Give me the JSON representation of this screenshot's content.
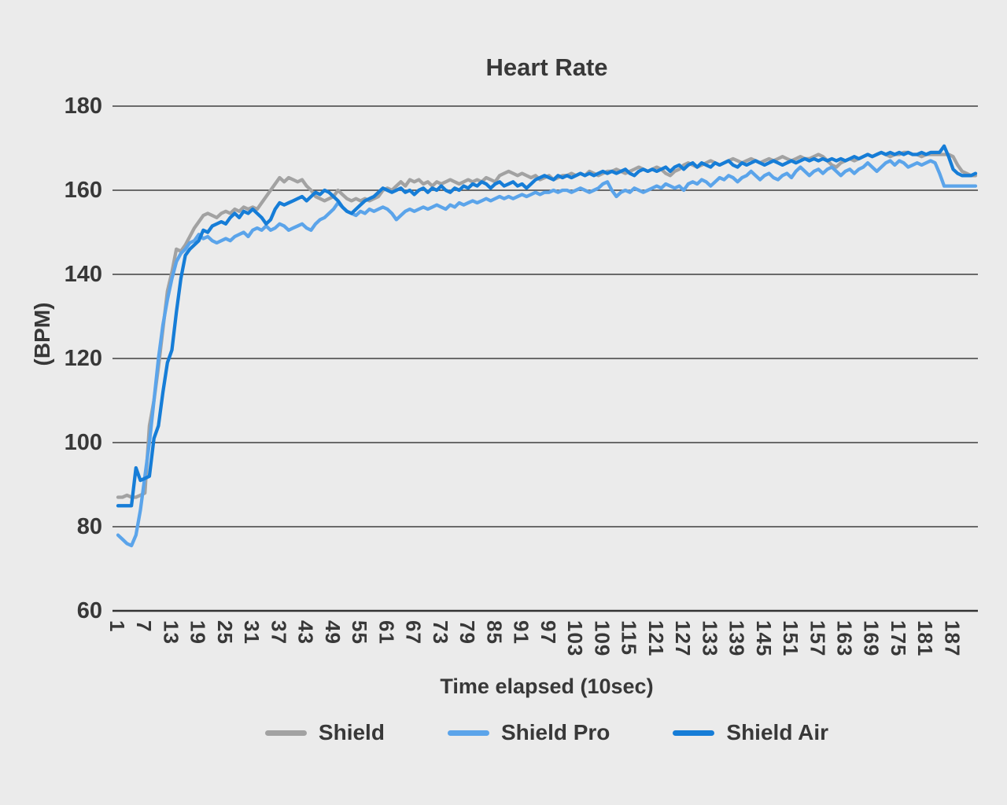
{
  "chart_data": {
    "type": "line",
    "title": "Heart Rate",
    "ylabel": "(BPM)",
    "xlabel": "Time elapsed (10sec)",
    "ylim": [
      60,
      180
    ],
    "y_ticks": [
      180,
      160,
      140,
      120,
      100,
      80,
      60
    ],
    "x_ticks": [
      1,
      7,
      13,
      19,
      25,
      31,
      37,
      43,
      49,
      55,
      61,
      67,
      73,
      79,
      85,
      91,
      97,
      103,
      109,
      115,
      121,
      127,
      133,
      139,
      145,
      151,
      157,
      163,
      169,
      175,
      181,
      187
    ],
    "x_start": 1,
    "x_step": 1,
    "grid": "horizontal",
    "legend_position": "bottom",
    "colors": {
      "background": "#ebebeb",
      "gridline": "#404040",
      "axis_line": "#333333",
      "text": "#383838"
    },
    "series": [
      {
        "name": "Shield",
        "color": "#a2a2a2",
        "values": [
          87,
          87,
          87.5,
          87,
          87,
          87.5,
          88,
          104,
          110,
          118,
          127,
          136,
          140.5,
          146,
          145.5,
          147,
          149,
          151,
          152.5,
          154,
          154.5,
          154,
          153.5,
          154.5,
          155,
          154.5,
          155.5,
          155,
          156,
          155.5,
          156,
          155.5,
          157,
          158.5,
          160,
          161.5,
          163,
          162,
          163,
          162.5,
          162,
          162.5,
          161,
          160,
          158.5,
          158,
          157.5,
          158,
          158.5,
          160,
          159,
          158,
          157.5,
          158,
          157.5,
          158,
          157.5,
          158,
          158.5,
          160,
          160.5,
          160,
          161,
          162,
          161,
          162.5,
          162,
          162.5,
          161.5,
          162,
          161,
          162,
          161.5,
          162,
          162.5,
          162,
          161.5,
          162,
          162.5,
          162,
          162.5,
          162,
          163,
          162.5,
          162,
          163.5,
          164,
          164.5,
          164,
          163.5,
          164,
          163.5,
          163,
          163.5,
          162.5,
          163,
          163.5,
          162.5,
          163,
          163.5,
          163.5,
          164,
          163.5,
          164,
          163.5,
          164.5,
          164,
          163.5,
          164,
          164.5,
          164.5,
          165,
          164.5,
          164,
          164.5,
          165,
          165.5,
          165,
          164.5,
          165,
          165.5,
          165,
          164,
          163.5,
          164.5,
          165,
          166,
          166.5,
          166,
          165.5,
          166,
          166.5,
          167,
          166.5,
          166,
          166.5,
          167,
          167.5,
          167,
          166.5,
          167,
          167.5,
          167,
          166.5,
          167,
          167.5,
          167,
          167.5,
          168,
          167.5,
          167,
          167.5,
          168,
          167.5,
          167.5,
          168,
          168.5,
          168,
          167,
          166,
          165.5,
          166.5,
          167,
          167.5,
          167,
          167.5,
          168,
          168.5,
          168,
          168.5,
          169,
          168.5,
          168,
          168.5,
          168.5,
          169,
          169,
          168.5,
          168.5,
          168,
          168.5,
          168.5,
          168.5,
          168.5,
          168.5,
          168.5,
          168,
          166,
          164.5,
          164,
          163.5,
          163.5
        ]
      },
      {
        "name": "Shield Pro",
        "color": "#5ba4ea",
        "values": [
          78,
          77,
          76,
          75.5,
          78,
          84,
          92,
          100,
          110,
          120,
          128,
          134,
          139,
          143,
          145,
          146,
          147.5,
          148,
          149.5,
          148.5,
          149,
          148,
          147.5,
          148,
          148.5,
          148,
          149,
          149.5,
          150,
          149,
          150.5,
          151,
          150.5,
          151.5,
          150.5,
          151,
          152,
          151.5,
          150.5,
          151,
          151.5,
          152,
          151,
          150.5,
          152,
          153,
          153.5,
          154.5,
          155.5,
          157,
          156,
          155,
          154.5,
          154,
          155,
          154.5,
          155.5,
          155,
          155.5,
          156,
          155.5,
          154.5,
          153,
          154,
          155,
          155.5,
          155,
          155.5,
          156,
          155.5,
          156,
          156.5,
          156,
          155.5,
          156.5,
          156,
          157,
          156.5,
          157,
          157.5,
          157,
          157.5,
          158,
          157.5,
          158,
          158.5,
          158,
          158.5,
          158,
          158.5,
          159,
          158.5,
          159,
          159.5,
          159,
          159.5,
          159.5,
          160,
          159.5,
          160,
          160,
          159.5,
          160,
          160.5,
          160,
          159.5,
          160,
          160.5,
          161.5,
          162,
          160,
          158.5,
          159.5,
          160,
          159.5,
          160.5,
          160,
          159.5,
          160,
          160.5,
          161,
          160.5,
          161.5,
          161,
          160.5,
          161,
          160,
          161.5,
          162,
          161.5,
          162.5,
          162,
          161,
          162,
          163,
          162.5,
          163.5,
          163,
          162,
          163,
          163.5,
          164.5,
          163.5,
          162.5,
          163.5,
          164,
          163,
          162.5,
          163.5,
          164,
          163,
          164.5,
          165.5,
          164.5,
          163.5,
          164.5,
          165,
          164,
          165,
          165.5,
          164.5,
          163.5,
          164.5,
          165,
          164,
          165,
          165.5,
          166.5,
          165.5,
          164.5,
          165.5,
          166.5,
          167,
          166,
          167,
          166.5,
          165.5,
          166,
          166.5,
          166,
          166.5,
          167,
          166.5,
          164,
          161,
          161,
          161,
          161,
          161,
          161,
          161,
          161
        ]
      },
      {
        "name": "Shield Air",
        "color": "#167dd7",
        "values": [
          85,
          85,
          85,
          85,
          94,
          91,
          91.5,
          92,
          101,
          104,
          112,
          119,
          122,
          131,
          139,
          144.5,
          146,
          147,
          148,
          150.5,
          150,
          151.5,
          152,
          152.5,
          152,
          153.5,
          154.5,
          153.5,
          155,
          154.5,
          155.5,
          154.5,
          153.5,
          152,
          153,
          155.5,
          157,
          156.5,
          157,
          157.5,
          158,
          158.5,
          157.5,
          158.5,
          159.5,
          159,
          160,
          159.5,
          158.5,
          157.5,
          156,
          155,
          154.5,
          155.5,
          156.5,
          157.5,
          158,
          158.5,
          159.5,
          160.5,
          160,
          159.5,
          160,
          160.5,
          159.5,
          160,
          159,
          160,
          160.5,
          159.5,
          160.5,
          160,
          161,
          160,
          159.5,
          160.5,
          160,
          161,
          160.5,
          161.5,
          161,
          162,
          161.5,
          160.5,
          161.5,
          162,
          161,
          161.5,
          162,
          161,
          161.5,
          160.5,
          161.5,
          162.5,
          163,
          163.5,
          163,
          162.5,
          163.5,
          163,
          163.5,
          163,
          163.5,
          164,
          163.5,
          164,
          163.5,
          164,
          164.5,
          164,
          164.5,
          164,
          164.5,
          165,
          164,
          163.5,
          164.5,
          165,
          164.5,
          165,
          164.5,
          165,
          165.5,
          164.5,
          165.5,
          166,
          165,
          166,
          166.5,
          165.5,
          166.5,
          166,
          165.5,
          166.5,
          166,
          166.5,
          167,
          166,
          165.5,
          166.5,
          166,
          166.5,
          167,
          166.5,
          166,
          166.5,
          167,
          166.5,
          166,
          166.5,
          167,
          166.5,
          167,
          167.5,
          167,
          167.5,
          167,
          167.5,
          167,
          167.5,
          167,
          167.5,
          167,
          167.5,
          168,
          167.5,
          168,
          168.5,
          168,
          168.5,
          169,
          168.5,
          169,
          168.5,
          169,
          168.5,
          169,
          168.5,
          168.5,
          169,
          168.5,
          169,
          169,
          169,
          170.5,
          168,
          165,
          164,
          163.5,
          163.5,
          163.5,
          164
        ]
      }
    ]
  }
}
